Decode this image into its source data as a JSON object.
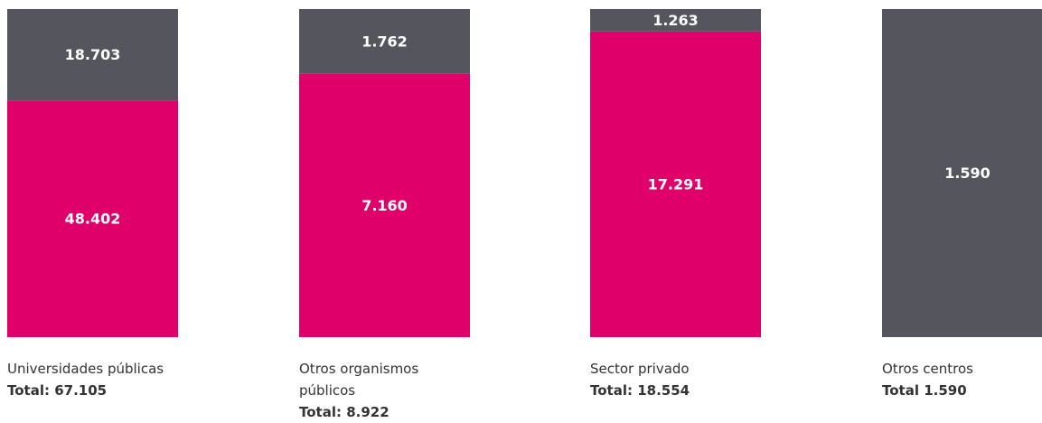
{
  "chart_data": {
    "type": "stacked100",
    "categories": [
      "Universidades públicas",
      "Otros organismos públicos",
      "Sector privado",
      "Otros centros"
    ],
    "totals": [
      "Total: 67.105",
      "Total: 8.922",
      "Total: 18.554",
      "Total 1.590"
    ],
    "series": [
      {
        "color": "#e0006a",
        "values": [
          48402,
          7160,
          17291,
          null
        ],
        "value_labels": [
          "48.402",
          "7.160",
          "17.291",
          null
        ]
      },
      {
        "color": "#55555e",
        "values": [
          18703,
          1762,
          1263,
          1590
        ],
        "value_labels": [
          "18.703",
          "1.762",
          "1.263",
          "1.590"
        ]
      }
    ]
  }
}
